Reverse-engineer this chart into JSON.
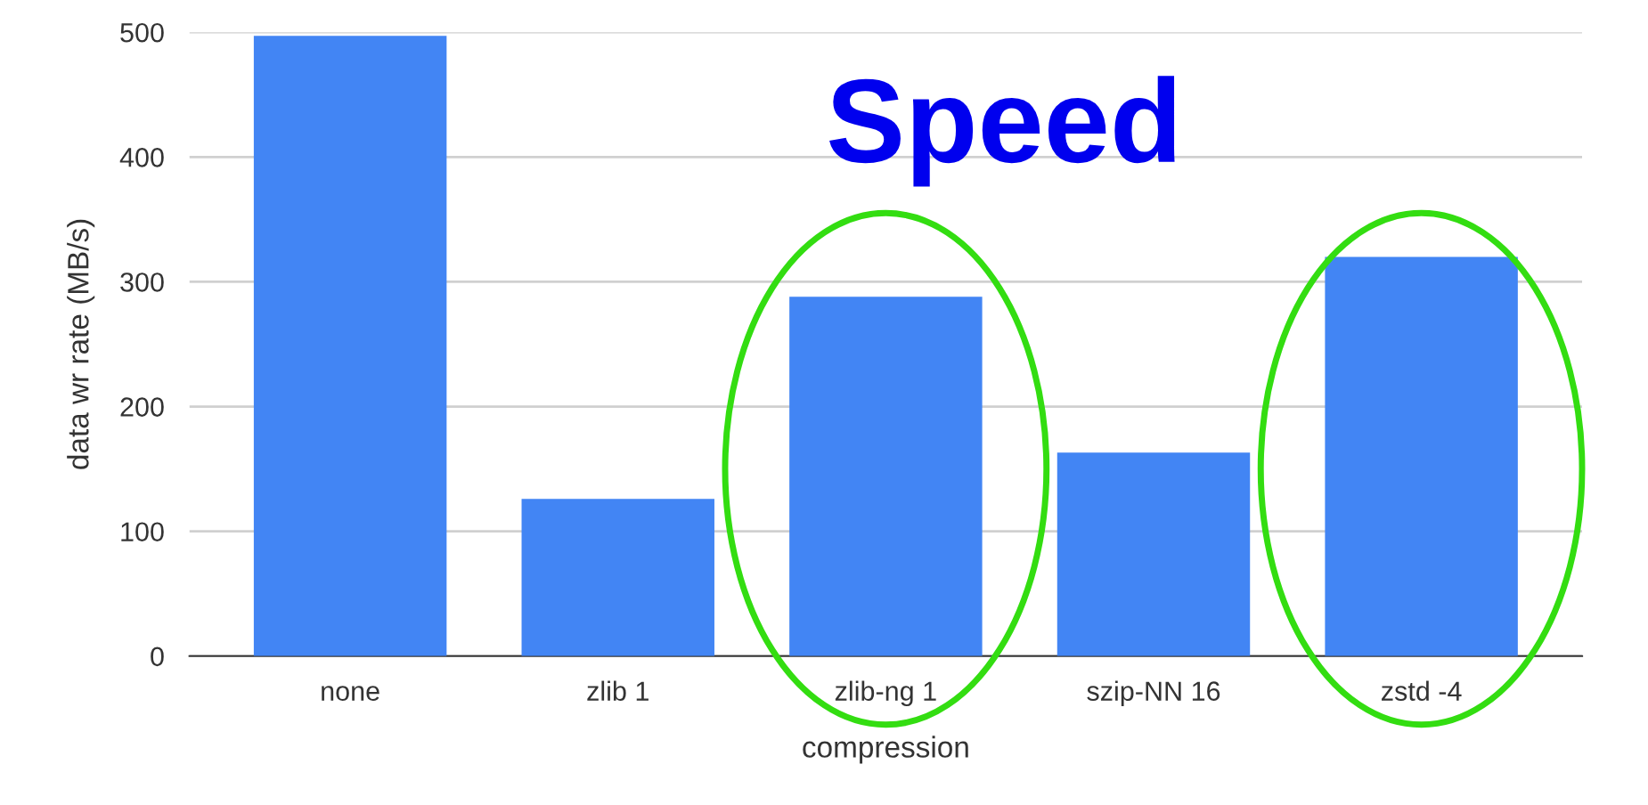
{
  "chart_data": {
    "type": "bar",
    "title": "Speed",
    "xlabel": "compression",
    "ylabel": "data wr rate (MB/s)",
    "categories": [
      "none",
      "zlib 1",
      "zlib-ng 1",
      "szip-NN 16",
      "zstd -4"
    ],
    "values": [
      497,
      126,
      288,
      163,
      320
    ],
    "color": "#4285f4",
    "ylim": [
      0,
      500
    ],
    "yticks": [
      0,
      100,
      200,
      300,
      400,
      500
    ],
    "grid": "y"
  }
}
